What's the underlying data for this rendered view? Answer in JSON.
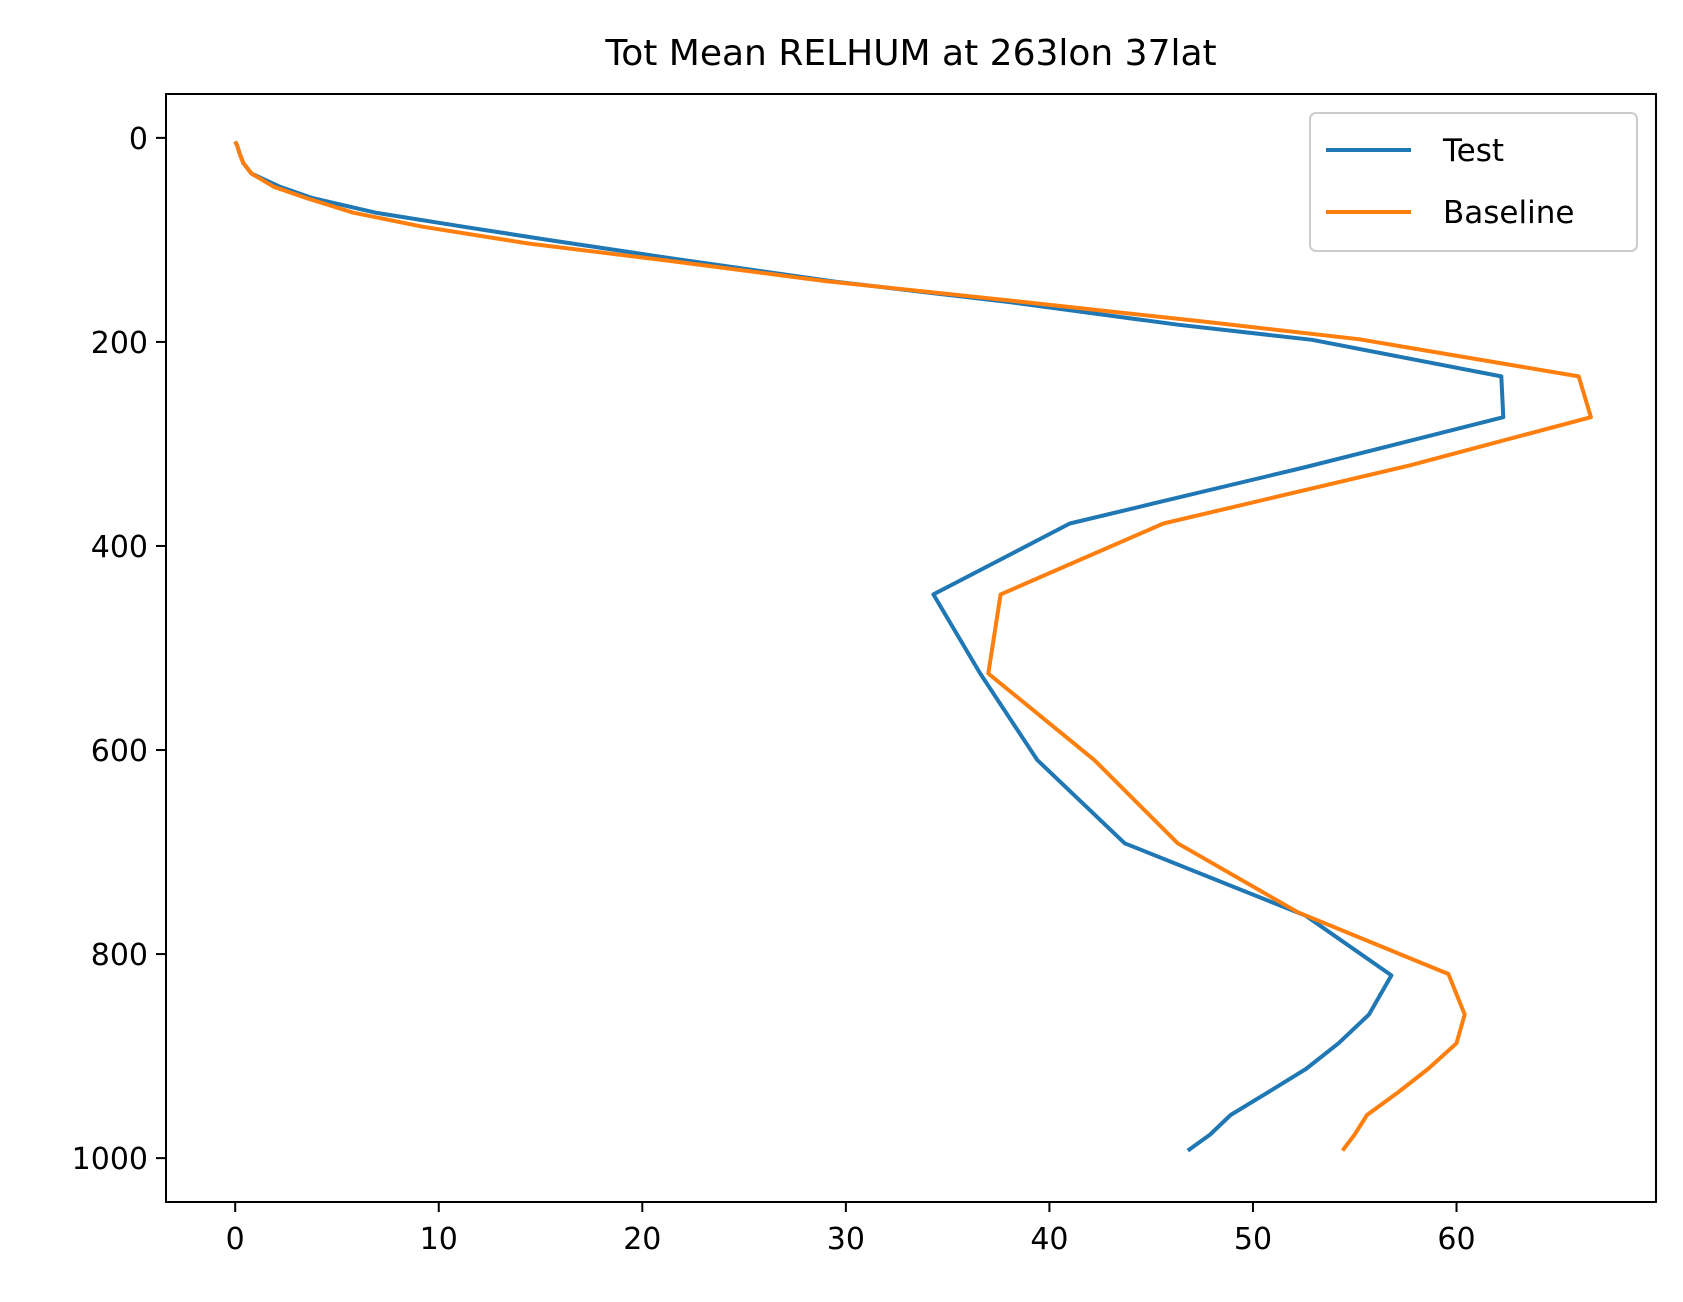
{
  "chart_data": {
    "type": "line",
    "title": "Tot Mean RELHUM at 263lon 37lat",
    "xlabel": "",
    "ylabel": "",
    "xlim": [
      -3.4,
      69.8
    ],
    "ylim": [
      1043,
      -43
    ],
    "y_inverted": true,
    "grid": false,
    "legend_position": "top-right",
    "xticks": [
      "0",
      "10",
      "20",
      "30",
      "40",
      "50",
      "60"
    ],
    "yticks": [
      "0",
      "200",
      "400",
      "600",
      "800",
      "1000"
    ],
    "series": [
      {
        "name": "Test",
        "color": "#1f77b4",
        "points": [
          [
            0.0,
            3.6
          ],
          [
            0.1,
            7.6
          ],
          [
            0.2,
            14.4
          ],
          [
            0.4,
            24.6
          ],
          [
            0.8,
            35.0
          ],
          [
            2.2,
            48.0
          ],
          [
            3.8,
            59.0
          ],
          [
            6.9,
            73.3
          ],
          [
            11.2,
            87.1
          ],
          [
            15.4,
            100.1
          ],
          [
            21.6,
            118.6
          ],
          [
            29.5,
            141.0
          ],
          [
            38.0,
            160.9
          ],
          [
            46.3,
            183.1
          ],
          [
            52.9,
            197.9
          ],
          [
            62.2,
            233.8
          ],
          [
            62.3,
            273.8
          ],
          [
            52.5,
            323.1
          ],
          [
            41.0,
            378.0
          ],
          [
            34.3,
            447.5
          ],
          [
            36.6,
            525.0
          ],
          [
            39.4,
            609.7
          ],
          [
            43.7,
            691.4
          ],
          [
            52.6,
            762.5
          ],
          [
            56.8,
            820.9
          ],
          [
            55.7,
            859.2
          ],
          [
            54.2,
            887.5
          ],
          [
            52.6,
            912.6
          ],
          [
            50.7,
            936.0
          ],
          [
            48.9,
            957.7
          ],
          [
            47.9,
            976.8
          ],
          [
            46.8,
            992.6
          ]
        ]
      },
      {
        "name": "Baseline",
        "color": "#ff7f0e",
        "points": [
          [
            0.0,
            3.6
          ],
          [
            0.1,
            7.6
          ],
          [
            0.2,
            14.4
          ],
          [
            0.4,
            24.6
          ],
          [
            0.8,
            35.0
          ],
          [
            1.9,
            48.0
          ],
          [
            3.5,
            59.0
          ],
          [
            5.8,
            73.3
          ],
          [
            9.2,
            87.1
          ],
          [
            14.4,
            103.5
          ],
          [
            21.2,
            120.2
          ],
          [
            29.0,
            140.4
          ],
          [
            38.5,
            160.4
          ],
          [
            47.6,
            180.1
          ],
          [
            55.2,
            197.3
          ],
          [
            66.0,
            233.8
          ],
          [
            66.6,
            273.8
          ],
          [
            57.7,
            321.0
          ],
          [
            45.6,
            378.0
          ],
          [
            37.6,
            447.5
          ],
          [
            37.0,
            525.0
          ],
          [
            42.2,
            609.7
          ],
          [
            46.3,
            691.4
          ],
          [
            52.2,
            759.0
          ],
          [
            59.6,
            819.5
          ],
          [
            60.4,
            859.2
          ],
          [
            60.0,
            887.5
          ],
          [
            58.6,
            912.6
          ],
          [
            57.1,
            936.0
          ],
          [
            55.6,
            957.7
          ],
          [
            55.0,
            976.8
          ],
          [
            54.4,
            992.6
          ]
        ]
      }
    ]
  }
}
